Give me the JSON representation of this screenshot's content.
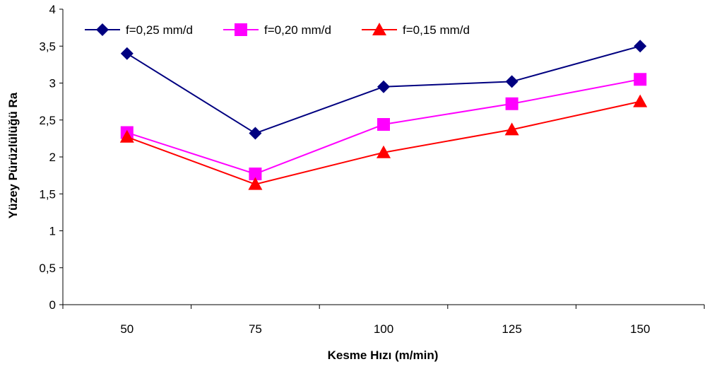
{
  "chart_data": {
    "type": "line",
    "title": "",
    "xlabel": "Kesme Hızı (m/min)",
    "ylabel": "Yüzey Pürüzlülüğü Ra",
    "categories": [
      "50",
      "75",
      "100",
      "125",
      "150"
    ],
    "ylim": [
      0,
      4
    ],
    "yticks": [
      "0",
      "0,5",
      "1",
      "1,5",
      "2",
      "2,5",
      "3",
      "3,5",
      "4"
    ],
    "grid": false,
    "legend": "top-left",
    "series": [
      {
        "name": "f=0,25 mm/d",
        "values": [
          3.4,
          2.32,
          2.95,
          3.02,
          3.5
        ],
        "color": "#000080",
        "marker": "diamond"
      },
      {
        "name": "f=0,20 mm/d",
        "values": [
          2.33,
          1.77,
          2.44,
          2.72,
          3.05
        ],
        "color": "#ff00ff",
        "marker": "square"
      },
      {
        "name": "f=0,15 mm/d",
        "values": [
          2.27,
          1.63,
          2.06,
          2.37,
          2.75
        ],
        "color": "#ff0000",
        "marker": "triangle"
      }
    ]
  }
}
